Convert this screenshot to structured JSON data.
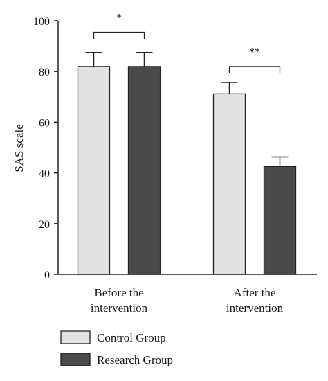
{
  "chart_data": {
    "type": "bar",
    "categories": [
      [
        "Before the",
        "intervention"
      ],
      [
        "After the",
        "intervention"
      ]
    ],
    "series": [
      {
        "name": "Control Group",
        "values": [
          82,
          71.2
        ],
        "errors": [
          5.5,
          4.5
        ],
        "color": "#e2e2e2"
      },
      {
        "name": "Research Group",
        "values": [
          82,
          42.5
        ],
        "errors": [
          5.5,
          3.8
        ],
        "color": "#4a4a4a"
      }
    ],
    "ylabel": "SAS scale",
    "xlabel": "",
    "ylim": [
      0,
      100
    ],
    "yticks": [
      0,
      20,
      40,
      60,
      80,
      100
    ],
    "annotations": [
      {
        "category_index": 0,
        "text": "*",
        "bracket_y": 95.5
      },
      {
        "category_index": 1,
        "text": "**",
        "bracket_y": 82
      }
    ],
    "legend_position": "bottom-left"
  }
}
